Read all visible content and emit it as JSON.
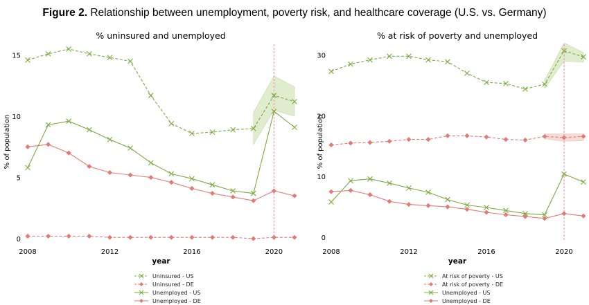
{
  "figure": {
    "label": "Figure 2.",
    "title": "Relationship between unemployment, poverty risk, and healthcare coverage (U.S. vs. Germany)"
  },
  "colors": {
    "green": "#7aab40",
    "green_band": "#dbe9c6",
    "red": "#e07c74",
    "red_band": "#f6d5d2",
    "vline": "#ef8a95"
  },
  "chart_data": [
    {
      "type": "line",
      "title": "% uninsured and unemployed",
      "xlabel": "year",
      "ylabel": "% of population",
      "xlim": [
        2008,
        2021
      ],
      "ylim": [
        0,
        16
      ],
      "xticks": [
        2008,
        2012,
        2016,
        2020
      ],
      "yticks": [
        0,
        5,
        10,
        15
      ],
      "vline": 2020,
      "grid": false,
      "legend_position": "bottom",
      "x": [
        2008,
        2009,
        2010,
        2011,
        2012,
        2013,
        2014,
        2015,
        2016,
        2017,
        2018,
        2019,
        2020,
        2021
      ],
      "series": [
        {
          "name": "Uninsured - US",
          "color": "green",
          "style": "dashed",
          "marker": "x",
          "values": [
            14.6,
            15.1,
            15.5,
            15.1,
            14.8,
            14.5,
            11.7,
            9.4,
            8.6,
            8.7,
            8.9,
            9.0,
            11.7,
            11.2
          ],
          "band": {
            "from": 2019,
            "lower": [
              7.7,
              10.5,
              10.0
            ],
            "upper": [
              10.3,
              13.3,
              12.4
            ]
          }
        },
        {
          "name": "Uninsured - DE",
          "color": "red",
          "style": "dashed",
          "marker": "diamond",
          "values": [
            0.2,
            0.2,
            0.2,
            0.2,
            0.1,
            0.1,
            0.1,
            0.1,
            0.1,
            0.1,
            0.1,
            0.0,
            0.1,
            0.1
          ]
        },
        {
          "name": "Unemployed - US",
          "color": "green",
          "style": "solid",
          "marker": "x",
          "values": [
            5.8,
            9.3,
            9.6,
            8.9,
            8.1,
            7.4,
            6.2,
            5.3,
            4.9,
            4.4,
            3.9,
            3.7,
            10.4,
            9.1
          ]
        },
        {
          "name": "Unemployed - DE",
          "color": "red",
          "style": "solid",
          "marker": "diamond",
          "values": [
            7.5,
            7.7,
            7.0,
            5.9,
            5.4,
            5.2,
            5.0,
            4.6,
            4.1,
            3.7,
            3.4,
            3.1,
            3.9,
            3.5
          ]
        }
      ]
    },
    {
      "type": "line",
      "title": "% at risk of poverty and unemployed",
      "xlabel": "year",
      "ylabel": "% of population",
      "xlim": [
        2008,
        2021
      ],
      "ylim": [
        0,
        32
      ],
      "xticks": [
        2008,
        2012,
        2016,
        2020
      ],
      "yticks": [
        0,
        10,
        20,
        30
      ],
      "vline": 2020,
      "grid": false,
      "legend_position": "bottom",
      "x": [
        2008,
        2009,
        2010,
        2011,
        2012,
        2013,
        2014,
        2015,
        2016,
        2017,
        2018,
        2019,
        2020,
        2021
      ],
      "series": [
        {
          "name": "At risk of poverty - US",
          "color": "green",
          "style": "dashed",
          "marker": "x",
          "values": [
            27.3,
            28.5,
            29.2,
            29.8,
            29.8,
            29.2,
            28.9,
            27.0,
            25.5,
            25.3,
            24.4,
            25.2,
            30.7,
            29.7
          ],
          "band": {
            "from": 2019,
            "lower": [
              24.5,
              29.0,
              28.8
            ],
            "upper": [
              25.8,
              32.0,
              30.4
            ]
          }
        },
        {
          "name": "At risk of poverty - DE",
          "color": "red",
          "style": "dashed",
          "marker": "diamond",
          "values": [
            15.2,
            15.5,
            15.6,
            15.8,
            16.1,
            16.1,
            16.7,
            16.7,
            16.5,
            16.1,
            16.0,
            16.6,
            16.4,
            16.6
          ],
          "band": {
            "from": 2019,
            "lower": [
              16.2,
              15.8,
              15.9
            ],
            "upper": [
              17.0,
              17.0,
              17.0
            ]
          }
        },
        {
          "name": "Unemployed - US",
          "color": "green",
          "style": "solid",
          "marker": "x",
          "values": [
            5.8,
            9.3,
            9.6,
            8.9,
            8.1,
            7.4,
            6.2,
            5.3,
            4.9,
            4.4,
            3.9,
            3.7,
            10.4,
            9.1
          ]
        },
        {
          "name": "Unemployed - DE",
          "color": "red",
          "style": "solid",
          "marker": "diamond",
          "values": [
            7.5,
            7.7,
            7.0,
            5.9,
            5.4,
            5.2,
            5.0,
            4.6,
            4.1,
            3.7,
            3.4,
            3.1,
            3.9,
            3.5
          ]
        }
      ]
    }
  ]
}
